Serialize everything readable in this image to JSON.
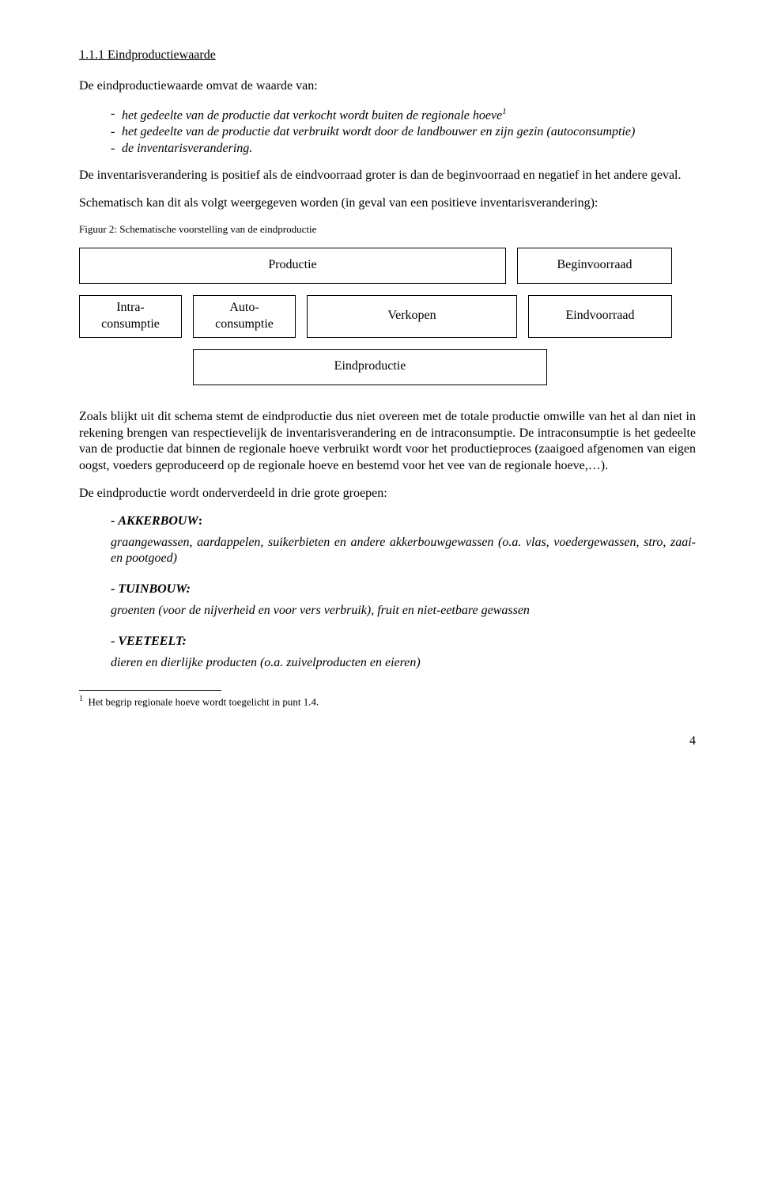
{
  "heading": "1.1.1 Eindproductiewaarde",
  "intro": "De eindproductiewaarde omvat de waarde van:",
  "list": [
    {
      "pre": "het gedeelte van de productie dat verkocht wordt buiten de regionale hoeve",
      "sup": "1"
    },
    {
      "pre": "het gedeelte van de productie dat verbruikt wordt door de landbouwer en zijn gezin (autoconsumptie)"
    },
    {
      "pre": "de inventarisverandering."
    }
  ],
  "para1": "De inventarisverandering is positief als de eindvoorraad groter is dan de beginvoorraad en negatief in het andere geval.",
  "para2": "Schematisch kan dit als volgt weergegeven worden (in geval van een positieve inventarisverandering):",
  "fig_caption": "Figuur 2: Schematische voorstelling van de eindproductie",
  "diagram": {
    "row1": {
      "productie_w": 540,
      "gap1_w": 14,
      "begin_w": 196,
      "left_pad": 0,
      "productie": "Productie",
      "begin": "Beginvoorraad"
    },
    "row2": {
      "intra_w": 130,
      "gap_a": 14,
      "auto_w": 130,
      "gap_b": 14,
      "verkopen_w": 266,
      "gap_c": 14,
      "eind_w": 182,
      "intra": "Intra-consumptie",
      "auto": "Auto-consumptie",
      "verkopen": "Verkopen",
      "eind": "Eindvoorraad"
    },
    "row3": {
      "left_pad": 144,
      "eindprod_w": 448,
      "eindprod": "Eindproductie"
    },
    "cell_height_single": 46,
    "cell_height_double": 54
  },
  "para3": "Zoals blijkt uit dit schema stemt de eindproductie dus niet overeen met de totale productie omwille van het al dan niet in rekening brengen van respectievelijk de inventarisverandering en de intraconsumptie. De intraconsumptie is het gedeelte van de productie dat binnen de regionale hoeve verbruikt wordt voor het productieproces (zaaigoed afgenomen van eigen oogst, voeders geproduceerd op de regionale hoeve en bestemd voor het vee van de regionale hoeve,…).",
  "para4": "De eindproductie wordt onderverdeeld in drie grote groepen:",
  "groups": [
    {
      "title": "AKKERBOUW",
      "suffix": ":",
      "desc": "graangewassen, aardappelen, suikerbieten en andere akkerbouwgewassen (o.a. vlas, voedergewassen, stro,  zaai- en pootgoed)"
    },
    {
      "title": "TUINBOUW:",
      "suffix": "",
      "desc": "groenten (voor de nijverheid en voor vers verbruik), fruit en niet-eetbare gewassen"
    },
    {
      "title": "VEETEELT:",
      "suffix": "",
      "desc": "dieren en dierlijke producten (o.a. zuivelproducten en eieren)"
    }
  ],
  "footnote": {
    "num": "1",
    "text": "Het begrip regionale hoeve wordt toegelicht in punt 1.4."
  },
  "page_number": "4"
}
